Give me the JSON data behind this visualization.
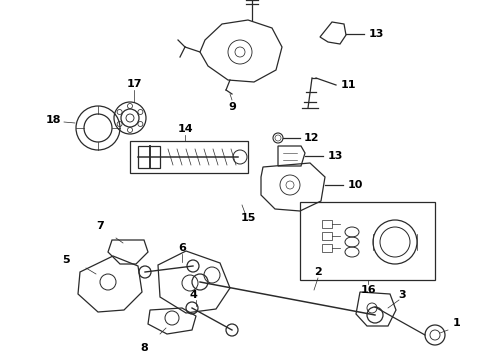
{
  "bg_color": "#ffffff",
  "lc": "#2a2a2a",
  "label_color": "#000000",
  "figsize": [
    4.9,
    3.6
  ],
  "dpi": 100
}
